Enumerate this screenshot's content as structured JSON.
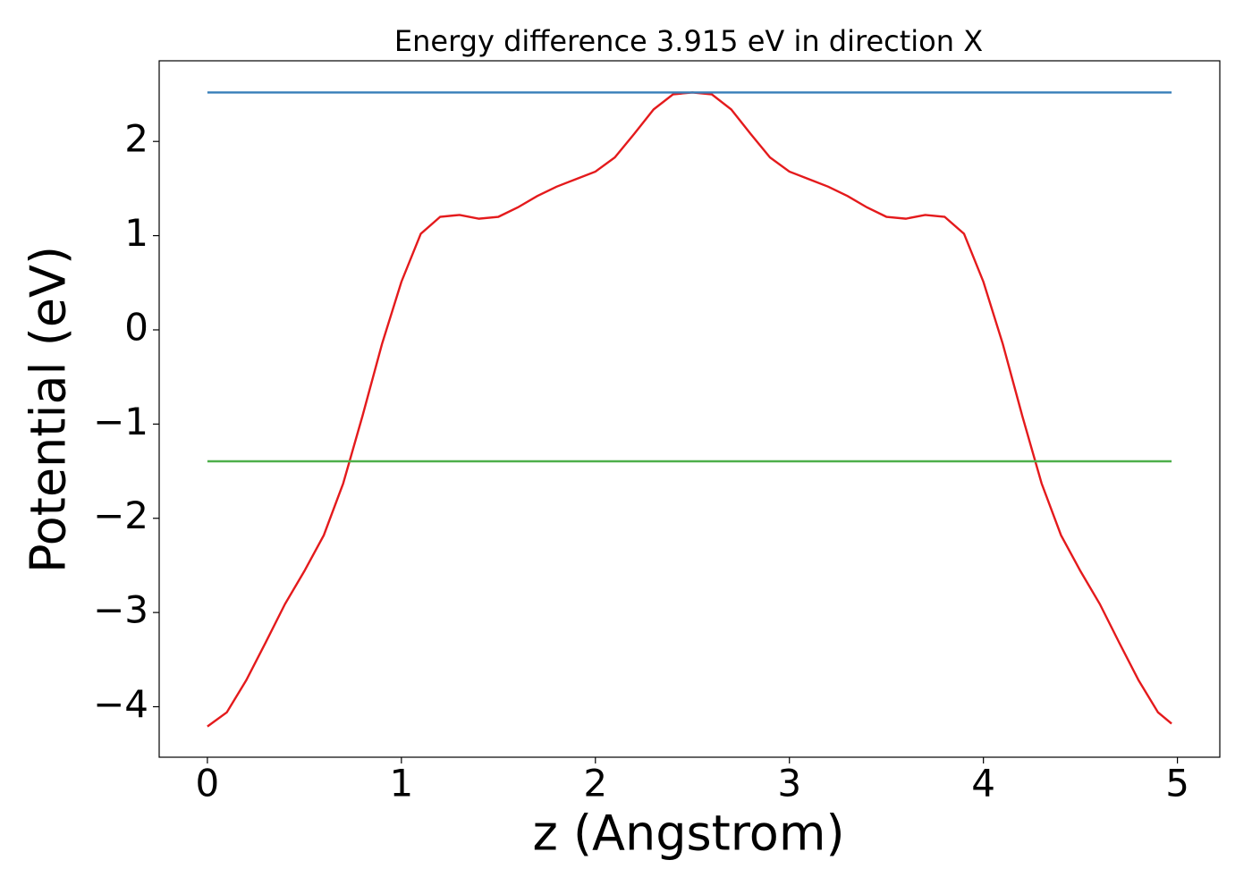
{
  "chart_data": {
    "type": "line",
    "title": "Energy difference 3.915 eV in direction X",
    "x_label": "z (Angstrom)",
    "y_label": "Potential (eV)",
    "xlim": [
      -0.2485,
      5.2185
    ],
    "ylim": [
      -4.536,
      2.856
    ],
    "xticks": [
      0,
      1,
      2,
      3,
      4,
      5
    ],
    "yticks": [
      {
        "value": -4,
        "label": "−4"
      },
      {
        "value": -3,
        "label": "−3"
      },
      {
        "value": -2,
        "label": "−2"
      },
      {
        "value": -1,
        "label": "−1"
      },
      0,
      1,
      2
    ],
    "series": [
      {
        "color": "#e41a1c",
        "x": [
          0,
          0.1,
          0.2,
          0.3,
          0.4,
          0.5,
          0.6,
          0.7,
          0.8,
          0.9,
          1.0,
          1.1,
          1.2,
          1.3,
          1.4,
          1.5,
          1.6,
          1.7,
          1.8,
          1.9,
          2.0,
          2.1,
          2.2,
          2.3,
          2.4,
          2.5,
          2.6,
          2.7,
          2.8,
          2.9,
          3.0,
          3.1,
          3.2,
          3.3,
          3.4,
          3.5,
          3.6,
          3.7,
          3.8,
          3.9,
          4.0,
          4.1,
          4.2,
          4.3,
          4.4,
          4.5,
          4.6,
          4.7,
          4.8,
          4.9,
          4.97
        ],
        "values": [
          -4.21,
          -4.06,
          -3.72,
          -3.32,
          -2.91,
          -2.56,
          -2.18,
          -1.63,
          -0.91,
          -0.15,
          0.51,
          1.02,
          1.2,
          1.22,
          1.18,
          1.2,
          1.3,
          1.42,
          1.52,
          1.6,
          1.68,
          1.83,
          2.08,
          2.34,
          2.5,
          2.52,
          2.5,
          2.34,
          2.08,
          1.83,
          1.68,
          1.6,
          1.52,
          1.42,
          1.3,
          1.2,
          1.18,
          1.22,
          1.2,
          1.02,
          0.51,
          -0.15,
          -0.91,
          -1.63,
          -2.18,
          -2.56,
          -2.91,
          -3.32,
          -3.72,
          -4.06,
          -4.18
        ]
      },
      {
        "color": "#377eb8",
        "x": [
          0,
          4.97
        ],
        "values": [
          2.52,
          2.52
        ]
      },
      {
        "color": "#4daf4a",
        "x": [
          0,
          4.97
        ],
        "values": [
          -1.395,
          -1.395
        ]
      }
    ]
  }
}
